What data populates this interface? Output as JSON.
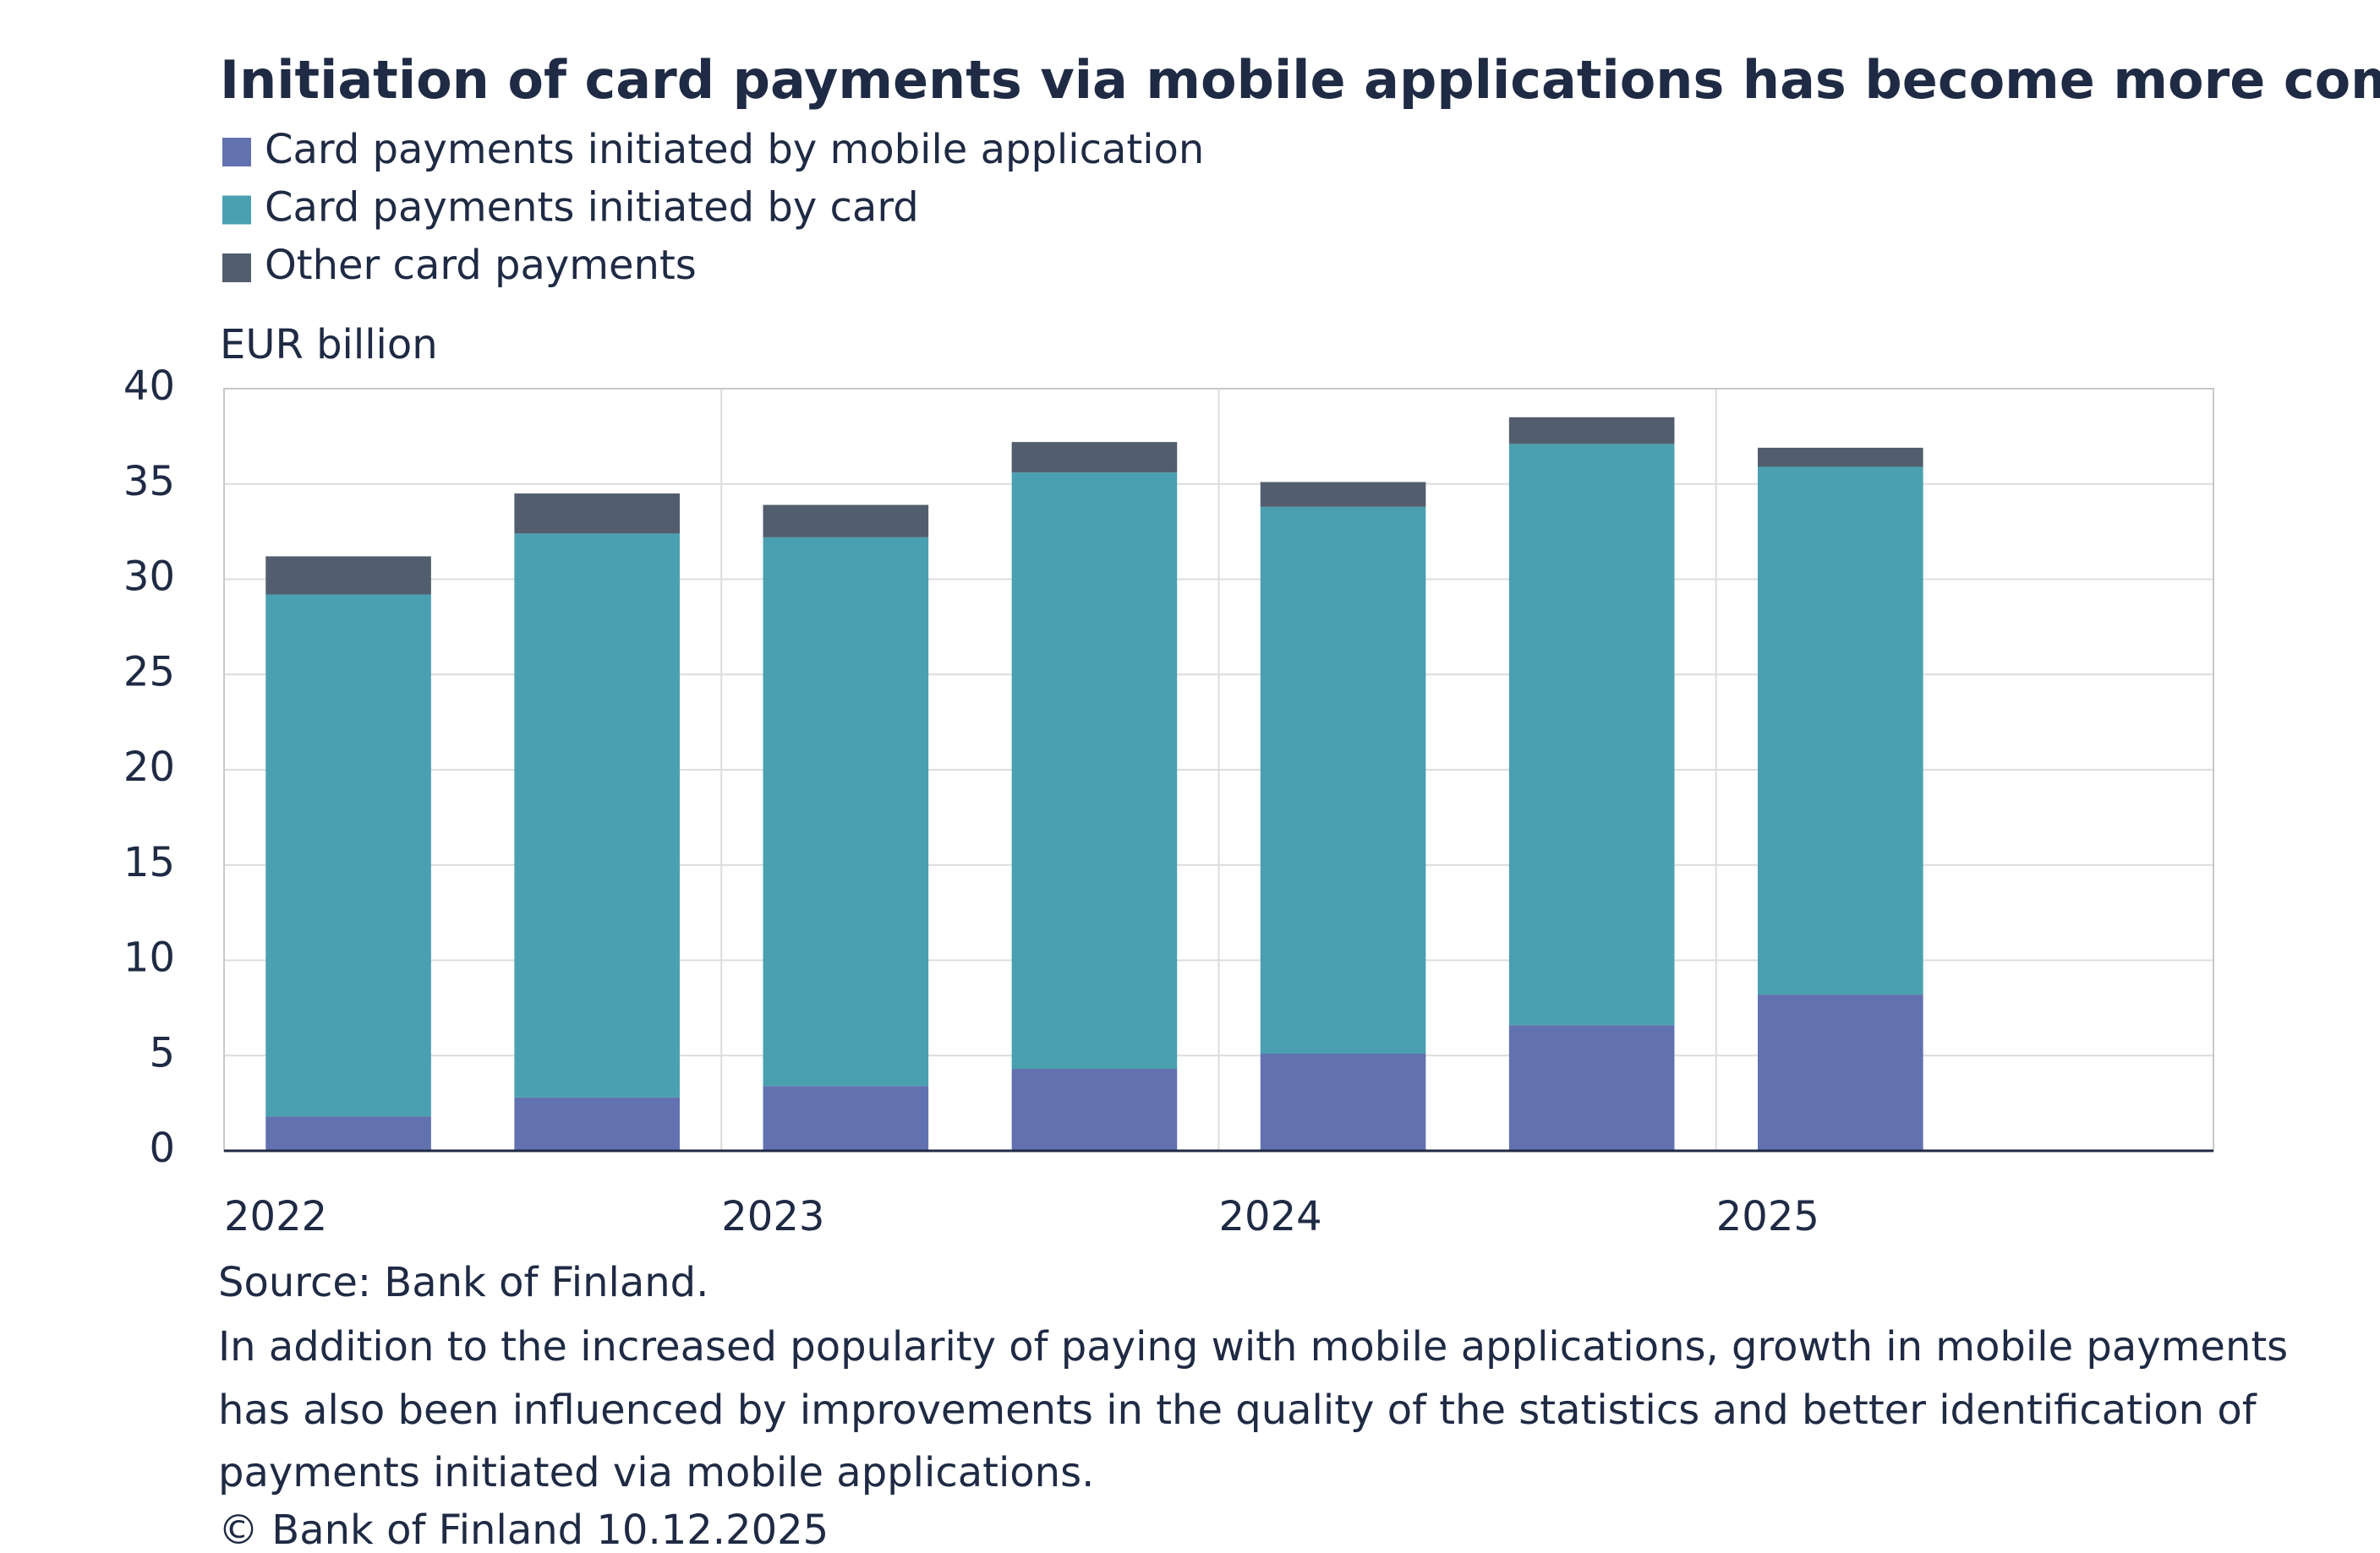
{
  "chart_data": {
    "type": "stacked_bar",
    "title": "Initiation of card payments via mobile applications has become more common",
    "y_label": "EUR billion",
    "categories": [
      "2022",
      null,
      "2023",
      null,
      "2024",
      null,
      "2025"
    ],
    "series": [
      {
        "name": "Card payments initiated by mobile application",
        "color": "#6272b0",
        "values": [
          1.8,
          2.8,
          3.4,
          4.3,
          5.1,
          6.6,
          8.2
        ]
      },
      {
        "name": "Card payments initiated by card",
        "color": "#4aa0b0",
        "values": [
          27.4,
          29.6,
          28.8,
          31.3,
          28.7,
          30.5,
          27.7
        ]
      },
      {
        "name": "Other card payments",
        "color": "#525d6e",
        "values": [
          2.0,
          2.1,
          1.7,
          1.6,
          1.3,
          1.4,
          1.0
        ]
      }
    ],
    "ylim": [
      0,
      40
    ],
    "yticks": [
      0,
      5,
      10,
      15,
      20,
      25,
      30,
      35,
      40
    ],
    "grid": true,
    "source": "Source: Bank of Finland.",
    "note_lines": [
      "In addition to the increased popularity of paying with mobile applications, growth in mobile payments",
      "has also been influenced by improvements in the quality of the statistics and better identification of",
      "payments initiated via mobile applications."
    ],
    "copyright": "© Bank of Finland 10.12.2025"
  }
}
